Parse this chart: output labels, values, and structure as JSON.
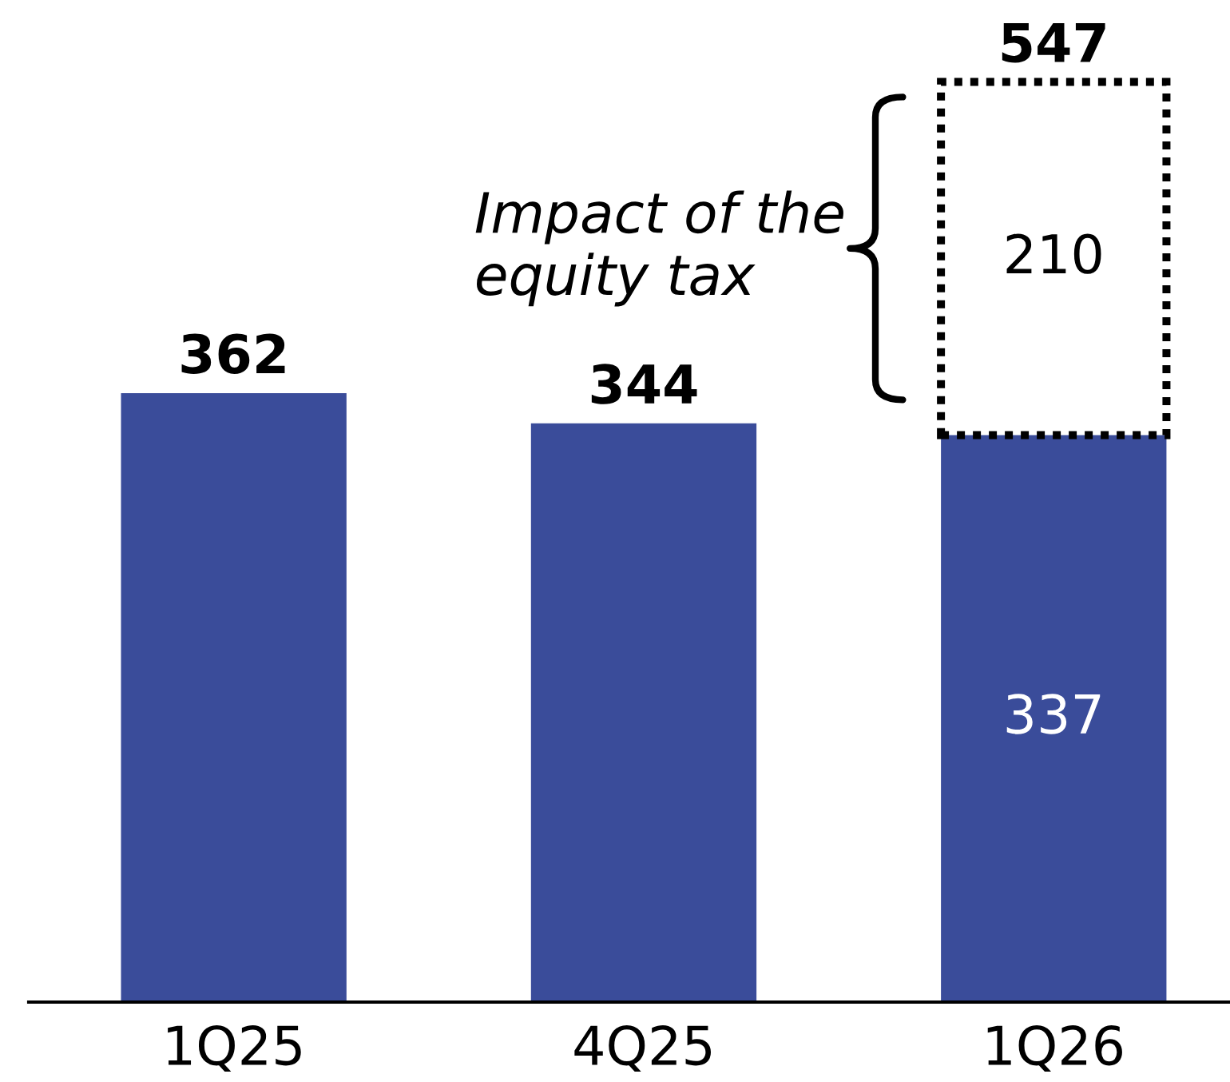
{
  "chart_data": {
    "type": "bar",
    "stacked": true,
    "categories": [
      "1Q25",
      "4Q25",
      "1Q26"
    ],
    "series": [
      {
        "color": "#3a4c9a",
        "values": [
          362,
          344,
          337
        ],
        "value_labels": [
          null,
          null,
          "337"
        ]
      },
      {
        "color": "#000000",
        "line_style": "dotted",
        "values": [
          null,
          null,
          210
        ],
        "value_labels": [
          null,
          null,
          "210"
        ]
      }
    ],
    "totals": [
      "362",
      "344",
      "547"
    ],
    "annotations": [
      "Impact of the\nequity tax"
    ],
    "tick_labels": "x"
  }
}
